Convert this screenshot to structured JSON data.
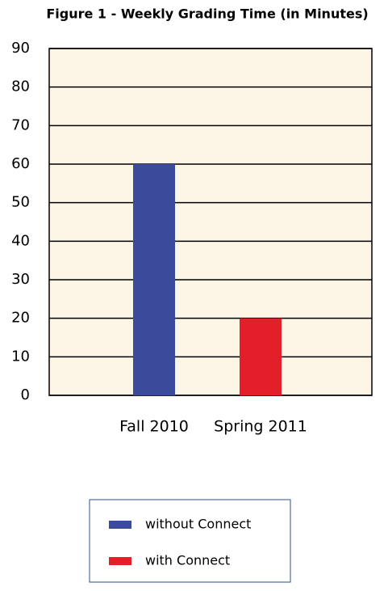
{
  "chart_data": {
    "type": "bar",
    "title": "Figure 1 - Weekly Grading Time (in Minutes)",
    "categories": [
      "Fall 2010",
      "Spring 2011"
    ],
    "series": [
      {
        "name": "without Connect",
        "color": "#3b4a9b",
        "values": [
          60,
          null
        ]
      },
      {
        "name": "with Connect",
        "color": "#e3202a",
        "values": [
          null,
          20
        ]
      }
    ],
    "ylim": [
      0,
      90
    ],
    "yticks": [
      0,
      10,
      20,
      30,
      40,
      50,
      60,
      70,
      80,
      90
    ],
    "grid": true,
    "legend": "bottom",
    "plot_background": "#fdf5e6"
  }
}
